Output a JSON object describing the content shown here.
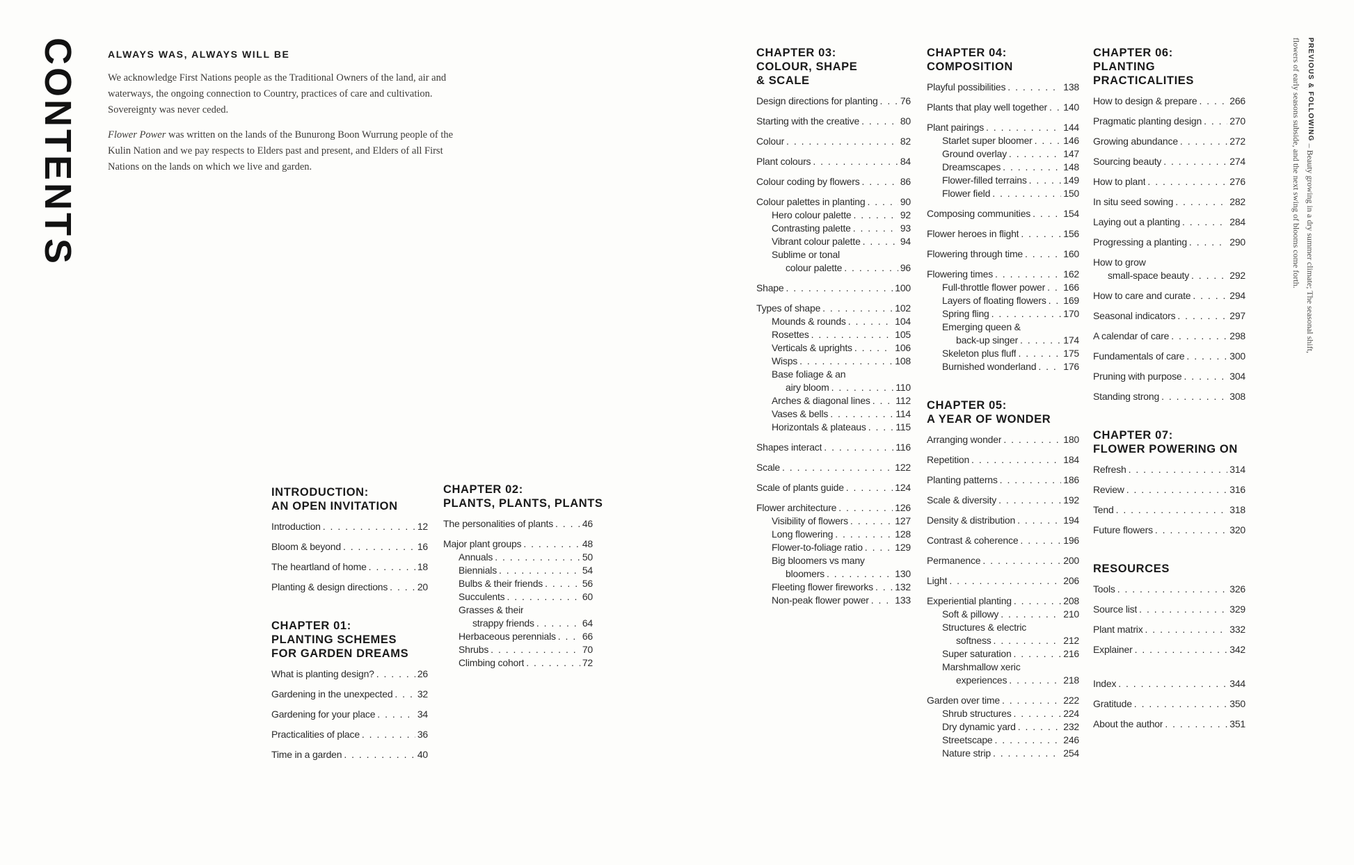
{
  "page": {
    "contents_vertical": "CONTENTS",
    "acknowledgment": {
      "heading": "ALWAYS WAS, ALWAYS WILL BE",
      "para1": "We acknowledge First Nations people as the Traditional Owners of the land, air and waterways, the ongoing connection to Country, practices of care and cultivation. Sovereignty was never ceded.",
      "para2_italic": "Flower Power",
      "para2_rest": " was written on the lands of the Bunurong Boon Wurrung people of the Kulin Nation and we pay respects to Elders past and present, and Elders of all First Nations on the lands on which we live and garden."
    },
    "sidenote": {
      "lead": "PREVIOUS & FOLLOWING",
      "line1_rest": " – Beauty growing in a dry summer climate; The seasonal shift,",
      "line2": "flowers of early seasons subside, and the next swing of blooms come forth."
    }
  },
  "columns": [
    {
      "sections": [
        {
          "id": "introduction",
          "heading": [
            "INTRODUCTION:",
            "AN OPEN INVITATION"
          ],
          "entries": [
            {
              "t": "Introduction",
              "p": "12"
            },
            {
              "t": "Bloom & beyond",
              "p": "16"
            },
            {
              "t": "The heartland of home",
              "p": "18"
            },
            {
              "t": "Planting & design directions",
              "p": "20"
            }
          ]
        },
        {
          "id": "chapter-01",
          "heading": [
            "CHAPTER 01:",
            "PLANTING SCHEMES",
            "FOR GARDEN DREAMS"
          ],
          "entries": [
            {
              "t": "What is planting design?",
              "p": "26"
            },
            {
              "t": "Gardening in the unexpected",
              "p": "32"
            },
            {
              "t": "Gardening for your place",
              "p": "34"
            },
            {
              "t": "Practicalities of place",
              "p": "36"
            },
            {
              "t": "Time in a garden",
              "p": "40"
            }
          ]
        }
      ]
    },
    {
      "sections": [
        {
          "id": "chapter-02",
          "heading": [
            "CHAPTER 02:",
            "PLANTS, PLANTS, PLANTS"
          ],
          "entries": [
            {
              "t": "The personalities of plants",
              "p": "46"
            },
            {
              "t": "Major plant groups",
              "p": "48"
            },
            {
              "t": "Annuals",
              "p": "50",
              "i": 1
            },
            {
              "t": "Biennials",
              "p": "54",
              "i": 1
            },
            {
              "t": "Bulbs & their friends",
              "p": "56",
              "i": 1
            },
            {
              "t": "Succulents",
              "p": "60",
              "i": 1
            },
            {
              "t": "Grasses & their",
              "t2": "strappy friends",
              "p": "64",
              "i": 1
            },
            {
              "t": "Herbaceous perennials",
              "p": "66",
              "i": 1
            },
            {
              "t": "Shrubs",
              "p": "70",
              "i": 1
            },
            {
              "t": "Climbing cohort",
              "p": "72",
              "i": 1
            }
          ]
        }
      ]
    },
    {
      "sections": [
        {
          "id": "chapter-03",
          "heading": [
            "CHAPTER 03:",
            "COLOUR, SHAPE",
            "& SCALE"
          ],
          "entries": [
            {
              "t": "Design directions for planting",
              "p": "76"
            },
            {
              "t": "Starting with the creative",
              "p": "80"
            },
            {
              "t": "Colour",
              "p": "82"
            },
            {
              "t": "Plant colours",
              "p": "84"
            },
            {
              "t": "Colour coding by flowers",
              "p": "86"
            },
            {
              "t": "Colour palettes in planting",
              "p": "90"
            },
            {
              "t": "Hero colour palette",
              "p": "92",
              "i": 1
            },
            {
              "t": "Contrasting palette",
              "p": "93",
              "i": 1
            },
            {
              "t": "Vibrant colour palette",
              "p": "94",
              "i": 1
            },
            {
              "t": "Sublime or tonal",
              "t2": "colour palette",
              "p": "96",
              "i": 1
            },
            {
              "t": "Shape",
              "p": "100"
            },
            {
              "t": "Types of shape",
              "p": "102"
            },
            {
              "t": "Mounds & rounds",
              "p": "104",
              "i": 1
            },
            {
              "t": "Rosettes",
              "p": "105",
              "i": 1
            },
            {
              "t": "Verticals & uprights",
              "p": "106",
              "i": 1
            },
            {
              "t": "Wisps",
              "p": "108",
              "i": 1
            },
            {
              "t": "Base foliage & an",
              "t2": "airy bloom",
              "p": "110",
              "i": 1
            },
            {
              "t": "Arches & diagonal lines",
              "p": "112",
              "i": 1
            },
            {
              "t": "Vases & bells",
              "p": "114",
              "i": 1
            },
            {
              "t": "Horizontals & plateaus",
              "p": "115",
              "i": 1
            },
            {
              "t": "Shapes interact",
              "p": "116"
            },
            {
              "t": "Scale",
              "p": "122"
            },
            {
              "t": "Scale of plants guide",
              "p": "124"
            },
            {
              "t": "Flower architecture",
              "p": "126"
            },
            {
              "t": "Visibility of flowers",
              "p": "127",
              "i": 1
            },
            {
              "t": "Long flowering",
              "p": "128",
              "i": 1
            },
            {
              "t": "Flower-to-foliage ratio",
              "p": "129",
              "i": 1
            },
            {
              "t": "Big bloomers vs many",
              "t2": "bloomers",
              "p": "130",
              "i": 1
            },
            {
              "t": "Fleeting flower fireworks",
              "p": "132",
              "i": 1
            },
            {
              "t": "Non-peak flower power",
              "p": "133",
              "i": 1
            }
          ]
        }
      ]
    },
    {
      "sections": [
        {
          "id": "chapter-04",
          "heading": [
            "CHAPTER 04:",
            "COMPOSITION"
          ],
          "entries": [
            {
              "t": "Playful possibilities",
              "p": "138"
            },
            {
              "t": "Plants that play well together",
              "p": "140"
            },
            {
              "t": "Plant pairings",
              "p": "144"
            },
            {
              "t": "Starlet super bloomer",
              "p": "146",
              "i": 1
            },
            {
              "t": "Ground overlay",
              "p": "147",
              "i": 1
            },
            {
              "t": "Dreamscapes",
              "p": "148",
              "i": 1
            },
            {
              "t": "Flower-filled terrains",
              "p": "149",
              "i": 1
            },
            {
              "t": "Flower field",
              "p": "150",
              "i": 1
            },
            {
              "t": "Composing communities",
              "p": "154"
            },
            {
              "t": "Flower heroes in flight",
              "p": "156"
            },
            {
              "t": "Flowering through time",
              "p": "160"
            },
            {
              "t": "Flowering times",
              "p": "162"
            },
            {
              "t": "Full-throttle flower power",
              "p": "166",
              "i": 1
            },
            {
              "t": "Layers of floating flowers",
              "p": "169",
              "i": 1
            },
            {
              "t": "Spring fling",
              "p": "170",
              "i": 1
            },
            {
              "t": "Emerging queen &",
              "t2": "back-up singer",
              "p": "174",
              "i": 1
            },
            {
              "t": "Skeleton plus fluff",
              "p": "175",
              "i": 1
            },
            {
              "t": "Burnished wonderland",
              "p": "176",
              "i": 1
            }
          ]
        },
        {
          "id": "chapter-05",
          "heading": [
            "CHAPTER 05:",
            "A YEAR OF WONDER"
          ],
          "entries": [
            {
              "t": "Arranging wonder",
              "p": "180"
            },
            {
              "t": "Repetition",
              "p": "184"
            },
            {
              "t": "Planting patterns",
              "p": "186"
            },
            {
              "t": "Scale & diversity",
              "p": "192"
            },
            {
              "t": "Density & distribution",
              "p": "194"
            },
            {
              "t": "Contrast & coherence",
              "p": "196"
            },
            {
              "t": "Permanence",
              "p": "200"
            },
            {
              "t": "Light",
              "p": "206"
            },
            {
              "t": "Experiential planting",
              "p": "208"
            },
            {
              "t": "Soft & pillowy",
              "p": "210",
              "i": 1
            },
            {
              "t": "Structures & electric",
              "t2": "softness",
              "p": "212",
              "i": 1
            },
            {
              "t": "Super saturation",
              "p": "216",
              "i": 1
            },
            {
              "t": "Marshmallow xeric",
              "t2": "experiences",
              "p": "218",
              "i": 1
            },
            {
              "t": "Garden over time",
              "p": "222"
            },
            {
              "t": "Shrub structures",
              "p": "224",
              "i": 1
            },
            {
              "t": "Dry dynamic yard",
              "p": "232",
              "i": 1
            },
            {
              "t": "Streetscape",
              "p": "246",
              "i": 1
            },
            {
              "t": "Nature strip",
              "p": "254",
              "i": 1
            }
          ]
        }
      ]
    },
    {
      "sections": [
        {
          "id": "chapter-06",
          "heading": [
            "CHAPTER 06:",
            "PLANTING",
            "PRACTICALITIES"
          ],
          "entries": [
            {
              "t": "How to design & prepare",
              "p": "266"
            },
            {
              "t": "Pragmatic planting design",
              "p": "270"
            },
            {
              "t": "Growing abundance",
              "p": "272"
            },
            {
              "t": "Sourcing beauty",
              "p": "274"
            },
            {
              "t": "How to plant",
              "p": "276"
            },
            {
              "t": "In situ seed sowing",
              "p": "282"
            },
            {
              "t": "Laying out a planting",
              "p": "284"
            },
            {
              "t": "Progressing a planting",
              "p": "290"
            },
            {
              "t": "How to grow",
              "t2": "small-space beauty",
              "p": "292"
            },
            {
              "t": "How to care and curate",
              "p": "294"
            },
            {
              "t": "Seasonal indicators",
              "p": "297"
            },
            {
              "t": "A calendar of care",
              "p": "298"
            },
            {
              "t": "Fundamentals of care",
              "p": "300"
            },
            {
              "t": "Pruning with purpose",
              "p": "304"
            },
            {
              "t": "Standing strong",
              "p": "308"
            }
          ]
        },
        {
          "id": "chapter-07",
          "heading": [
            "CHAPTER 07:",
            "FLOWER POWERING ON"
          ],
          "entries": [
            {
              "t": "Refresh",
              "p": "314"
            },
            {
              "t": "Review",
              "p": "316"
            },
            {
              "t": "Tend",
              "p": "318"
            },
            {
              "t": "Future flowers",
              "p": "320"
            }
          ]
        },
        {
          "id": "resources",
          "heading": [
            "RESOURCES"
          ],
          "entries": [
            {
              "t": "Tools",
              "p": "326"
            },
            {
              "t": "Source list",
              "p": "329"
            },
            {
              "t": "Plant matrix",
              "p": "332"
            },
            {
              "t": "Explainer",
              "p": "342"
            },
            {
              "t": "Index",
              "p": "344",
              "g": true
            },
            {
              "t": "Gratitude",
              "p": "350"
            },
            {
              "t": "About the author",
              "p": "351"
            }
          ]
        }
      ]
    }
  ]
}
